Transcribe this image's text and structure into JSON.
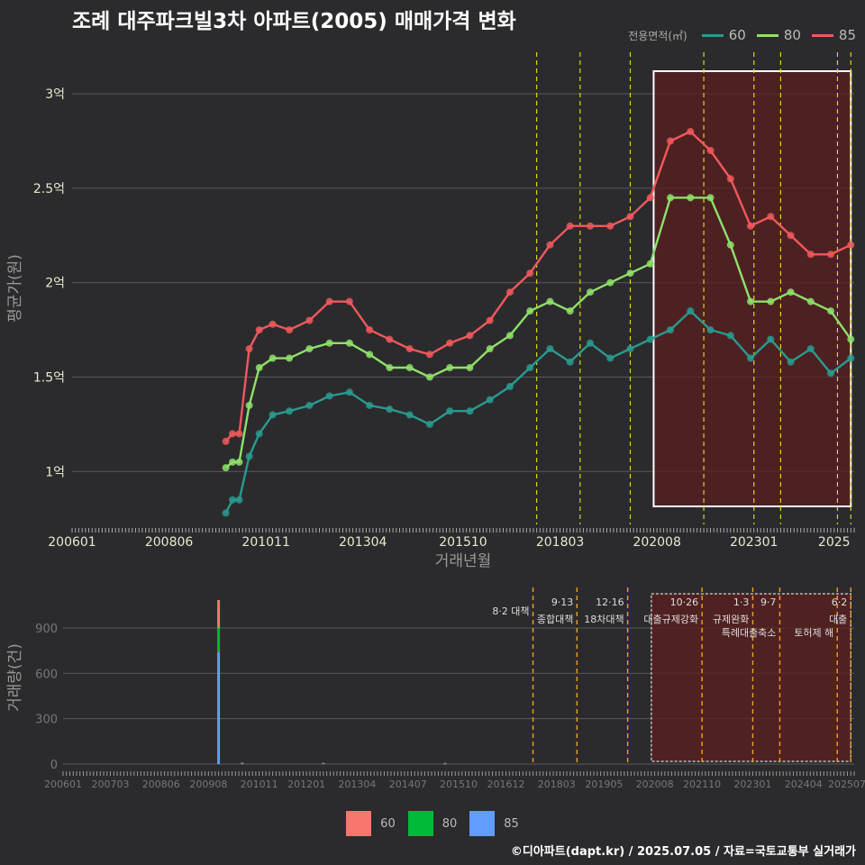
{
  "title": "조례 대주파크빌3차 아파트(2005) 매매가격 변화",
  "footer": "©디아파트(dapt.kr) / 2025.07.05 / 자료=국토교통부 실거래가",
  "colors": {
    "s60": "#2a9a8f",
    "s80": "#8fe06a",
    "s85": "#f0585c",
    "bar60": "#f8766d",
    "bar80": "#00ba38",
    "bar85": "#619cff",
    "policy_top": "#d8d81a",
    "policy_bottom": "#f0a020",
    "highlight_fill": "#5a1f1f"
  },
  "chart_data": [
    {
      "type": "line",
      "title": "조례 대주파크빌3차 아파트(2005) 매매가격 변화",
      "xlabel": "거래년월",
      "ylabel": "평균가(원)",
      "legend_title": "전용면적(㎡)",
      "legend_position": "top-right",
      "grid": true,
      "x_tick_labels": [
        "200601",
        "200806",
        "201011",
        "201304",
        "201510",
        "201803",
        "202008",
        "202301",
        "2025"
      ],
      "y_ticks": [
        1.0,
        1.5,
        2.0,
        2.5,
        3.0
      ],
      "y_tick_labels": [
        "1억",
        "1.5억",
        "2억",
        "2.5억",
        "3억"
      ],
      "ylim": [
        0.72,
        3.22
      ],
      "xlim": [
        "2006-01",
        "2025-07"
      ],
      "policy_dates": [
        "2017-08",
        "2018-09",
        "2019-12",
        "2021-10",
        "2023-01",
        "2023-09",
        "2025-02",
        "2025-06"
      ],
      "highlight_range": [
        "2020-07",
        "2025-06"
      ],
      "series": [
        {
          "name": "60",
          "points": [
            [
              "2009-11",
              0.78
            ],
            [
              "2010-01",
              0.85
            ],
            [
              "2010-03",
              0.85
            ],
            [
              "2010-06",
              1.08
            ],
            [
              "2010-09",
              1.2
            ],
            [
              "2011-01",
              1.3
            ],
            [
              "2011-06",
              1.32
            ],
            [
              "2011-12",
              1.35
            ],
            [
              "2012-06",
              1.4
            ],
            [
              "2012-12",
              1.42
            ],
            [
              "2013-06",
              1.35
            ],
            [
              "2013-12",
              1.33
            ],
            [
              "2014-06",
              1.3
            ],
            [
              "2014-12",
              1.25
            ],
            [
              "2015-06",
              1.32
            ],
            [
              "2015-12",
              1.32
            ],
            [
              "2016-06",
              1.38
            ],
            [
              "2016-12",
              1.45
            ],
            [
              "2017-06",
              1.55
            ],
            [
              "2017-12",
              1.65
            ],
            [
              "2018-06",
              1.58
            ],
            [
              "2018-12",
              1.68
            ],
            [
              "2019-06",
              1.6
            ],
            [
              "2019-12",
              1.65
            ],
            [
              "2020-06",
              1.7
            ],
            [
              "2020-12",
              1.75
            ],
            [
              "2021-06",
              1.85
            ],
            [
              "2021-12",
              1.75
            ],
            [
              "2022-06",
              1.72
            ],
            [
              "2022-12",
              1.6
            ],
            [
              "2023-06",
              1.7
            ],
            [
              "2023-12",
              1.58
            ],
            [
              "2024-06",
              1.65
            ],
            [
              "2024-12",
              1.52
            ],
            [
              "2025-06",
              1.6
            ]
          ]
        },
        {
          "name": "80",
          "points": [
            [
              "2009-11",
              1.02
            ],
            [
              "2010-01",
              1.05
            ],
            [
              "2010-03",
              1.05
            ],
            [
              "2010-06",
              1.35
            ],
            [
              "2010-09",
              1.55
            ],
            [
              "2011-01",
              1.6
            ],
            [
              "2011-06",
              1.6
            ],
            [
              "2011-12",
              1.65
            ],
            [
              "2012-06",
              1.68
            ],
            [
              "2012-12",
              1.68
            ],
            [
              "2013-06",
              1.62
            ],
            [
              "2013-12",
              1.55
            ],
            [
              "2014-06",
              1.55
            ],
            [
              "2014-12",
              1.5
            ],
            [
              "2015-06",
              1.55
            ],
            [
              "2015-12",
              1.55
            ],
            [
              "2016-06",
              1.65
            ],
            [
              "2016-12",
              1.72
            ],
            [
              "2017-06",
              1.85
            ],
            [
              "2017-12",
              1.9
            ],
            [
              "2018-06",
              1.85
            ],
            [
              "2018-12",
              1.95
            ],
            [
              "2019-06",
              2.0
            ],
            [
              "2019-12",
              2.05
            ],
            [
              "2020-06",
              2.1
            ],
            [
              "2020-12",
              2.45
            ],
            [
              "2021-06",
              2.45
            ],
            [
              "2021-12",
              2.45
            ],
            [
              "2022-06",
              2.2
            ],
            [
              "2022-12",
              1.9
            ],
            [
              "2023-06",
              1.9
            ],
            [
              "2023-12",
              1.95
            ],
            [
              "2024-06",
              1.9
            ],
            [
              "2024-12",
              1.85
            ],
            [
              "2025-06",
              1.7
            ]
          ]
        },
        {
          "name": "85",
          "points": [
            [
              "2009-11",
              1.16
            ],
            [
              "2010-01",
              1.2
            ],
            [
              "2010-03",
              1.2
            ],
            [
              "2010-06",
              1.65
            ],
            [
              "2010-09",
              1.75
            ],
            [
              "2011-01",
              1.78
            ],
            [
              "2011-06",
              1.75
            ],
            [
              "2011-12",
              1.8
            ],
            [
              "2012-06",
              1.9
            ],
            [
              "2012-12",
              1.9
            ],
            [
              "2013-06",
              1.75
            ],
            [
              "2013-12",
              1.7
            ],
            [
              "2014-06",
              1.65
            ],
            [
              "2014-12",
              1.62
            ],
            [
              "2015-06",
              1.68
            ],
            [
              "2015-12",
              1.72
            ],
            [
              "2016-06",
              1.8
            ],
            [
              "2016-12",
              1.95
            ],
            [
              "2017-06",
              2.05
            ],
            [
              "2017-12",
              2.2
            ],
            [
              "2018-06",
              2.3
            ],
            [
              "2018-12",
              2.3
            ],
            [
              "2019-06",
              2.3
            ],
            [
              "2019-12",
              2.35
            ],
            [
              "2020-06",
              2.45
            ],
            [
              "2020-12",
              2.75
            ],
            [
              "2021-06",
              2.8
            ],
            [
              "2021-12",
              2.7
            ],
            [
              "2022-06",
              2.55
            ],
            [
              "2022-12",
              2.3
            ],
            [
              "2023-06",
              2.35
            ],
            [
              "2023-12",
              2.25
            ],
            [
              "2024-06",
              2.15
            ],
            [
              "2024-12",
              2.15
            ],
            [
              "2025-06",
              2.2
            ]
          ]
        }
      ]
    },
    {
      "type": "bar",
      "ylabel": "거래량(건)",
      "grid": true,
      "legend_position": "bottom",
      "x_tick_labels": [
        "200601",
        "200703",
        "200806",
        "200908",
        "201011",
        "201201",
        "201304",
        "201407",
        "201510",
        "201612",
        "201803",
        "201905",
        "202008",
        "202110",
        "202301",
        "202404",
        "202507"
      ],
      "y_ticks": [
        0,
        300,
        600,
        900
      ],
      "ylim": [
        0,
        1150
      ],
      "series": [
        {
          "name": "60",
          "points": [
            [
              "2009-11",
              185
            ],
            [
              "2010-06",
              2
            ],
            [
              "2012-06",
              2
            ],
            [
              "2015-06",
              2
            ]
          ]
        },
        {
          "name": "80",
          "points": [
            [
              "2009-11",
              160
            ],
            [
              "2010-06",
              3
            ],
            [
              "2012-06",
              2
            ],
            [
              "2015-06",
              3
            ]
          ]
        },
        {
          "name": "85",
          "points": [
            [
              "2009-11",
              740
            ],
            [
              "2010-06",
              4
            ],
            [
              "2012-06",
              4
            ],
            [
              "2015-06",
              3
            ]
          ]
        }
      ],
      "policy_annotations": [
        {
          "date": "2017-08",
          "label": "8·2 대책",
          "sub": ""
        },
        {
          "date": "2018-09",
          "label": "9·13",
          "sub": "종합대책"
        },
        {
          "date": "2019-12",
          "label": "12·16",
          "sub": "18차대책"
        },
        {
          "date": "2021-10",
          "label": "10·26",
          "sub": "대출규제강화"
        },
        {
          "date": "2023-01",
          "label": "1·3",
          "sub": "규제완화"
        },
        {
          "date": "2023-09",
          "label": "9·7",
          "sub": "특례대출축소"
        },
        {
          "date": "2025-02",
          "label": "",
          "sub": "토허제 해"
        },
        {
          "date": "2025-06",
          "label": "6·2",
          "sub": "대출"
        }
      ],
      "highlight_range": [
        "2020-07",
        "2025-06"
      ]
    }
  ]
}
